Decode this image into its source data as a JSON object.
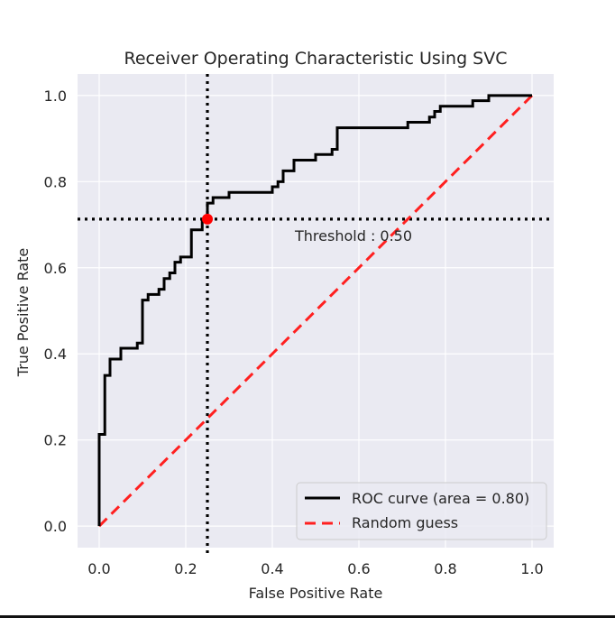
{
  "chart_data": {
    "type": "line",
    "title": "Receiver Operating Characteristic Using SVC",
    "xlabel": "False Positive Rate",
    "ylabel": "True Positive Rate",
    "xlim": [
      -0.05,
      1.05
    ],
    "ylim": [
      -0.05,
      1.05
    ],
    "xticks": [
      0.0,
      0.2,
      0.4,
      0.6,
      0.8,
      1.0
    ],
    "yticks": [
      0.0,
      0.2,
      0.4,
      0.6,
      0.8,
      1.0
    ],
    "tick_labels": [
      "0.0",
      "0.2",
      "0.4",
      "0.6",
      "0.8",
      "1.0"
    ],
    "grid": true,
    "legend_position": "lower-right",
    "series": [
      {
        "name": "ROC curve (area = 0.80)",
        "style": "solid",
        "color": "#000000",
        "x": [
          0.0,
          0.0,
          0.013,
          0.013,
          0.013,
          0.025,
          0.025,
          0.05,
          0.05,
          0.088,
          0.088,
          0.1,
          0.1,
          0.113,
          0.113,
          0.138,
          0.138,
          0.15,
          0.15,
          0.163,
          0.163,
          0.175,
          0.175,
          0.188,
          0.188,
          0.213,
          0.213,
          0.238,
          0.238,
          0.25,
          0.25,
          0.263,
          0.263,
          0.3,
          0.3,
          0.4,
          0.4,
          0.413,
          0.413,
          0.425,
          0.425,
          0.45,
          0.45,
          0.5,
          0.5,
          0.538,
          0.538,
          0.55,
          0.55,
          0.713,
          0.713,
          0.763,
          0.763,
          0.775,
          0.775,
          0.788,
          0.788,
          0.863,
          0.863,
          0.9,
          0.9,
          0.925,
          0.925,
          1.0
        ],
        "y": [
          0.0,
          0.213,
          0.213,
          0.35,
          0.35,
          0.35,
          0.388,
          0.388,
          0.413,
          0.413,
          0.425,
          0.425,
          0.525,
          0.525,
          0.538,
          0.538,
          0.55,
          0.55,
          0.575,
          0.575,
          0.588,
          0.588,
          0.613,
          0.613,
          0.625,
          0.625,
          0.688,
          0.688,
          0.713,
          0.713,
          0.75,
          0.75,
          0.763,
          0.763,
          0.775,
          0.775,
          0.788,
          0.788,
          0.8,
          0.8,
          0.825,
          0.825,
          0.85,
          0.85,
          0.863,
          0.863,
          0.875,
          0.875,
          0.925,
          0.925,
          0.938,
          0.938,
          0.95,
          0.95,
          0.963,
          0.963,
          0.975,
          0.975,
          0.988,
          0.988,
          1.0,
          1.0,
          1.0,
          1.0
        ]
      },
      {
        "name": "Random guess",
        "style": "dashed",
        "color": "#ff2020",
        "x": [
          0.0,
          1.0
        ],
        "y": [
          0.0,
          1.0
        ]
      }
    ],
    "threshold": {
      "label": "Threshold : 0.50",
      "fpr": 0.25,
      "tpr": 0.713,
      "color": "#ff0000"
    },
    "colors": {
      "background": "#eaeaf2",
      "grid": "#ffffff",
      "reference_lines": "#000000"
    }
  }
}
